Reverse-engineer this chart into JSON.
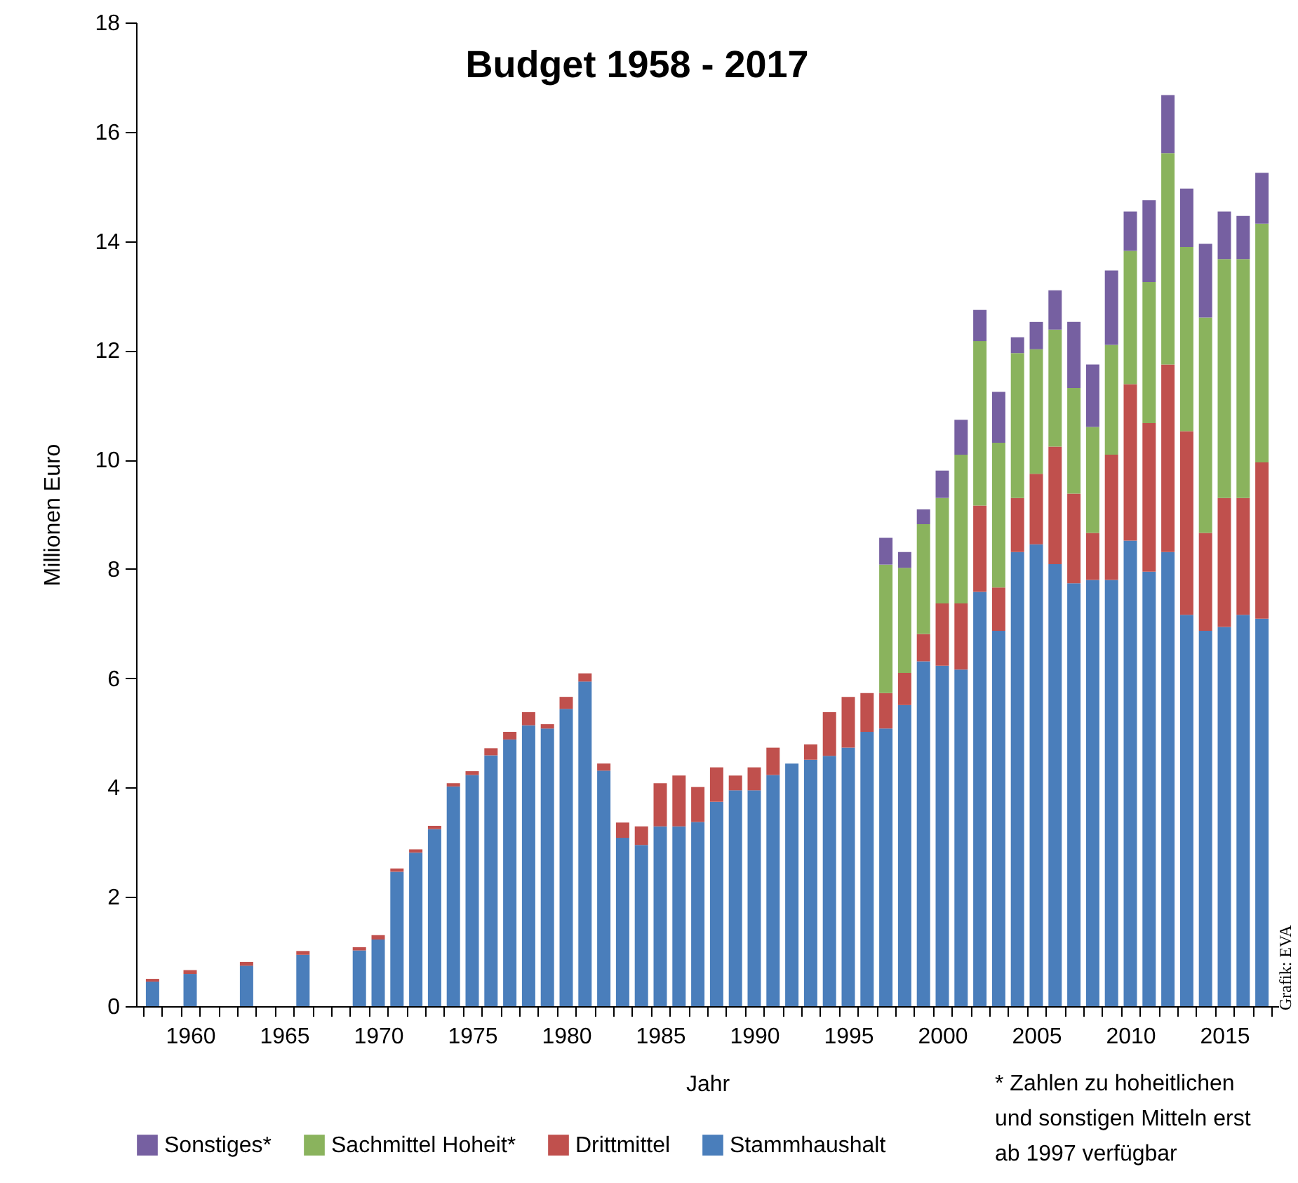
{
  "chart_data": {
    "type": "bar",
    "stacked": true,
    "title": "Budget 1958 - 2017",
    "xlabel": "Jahr",
    "ylabel": "Millionen Euro",
    "legend": "bottom",
    "x": [
      1958,
      1959,
      1960,
      1961,
      1962,
      1963,
      1964,
      1965,
      1966,
      1967,
      1968,
      1969,
      1970,
      1971,
      1972,
      1973,
      1974,
      1975,
      1976,
      1977,
      1978,
      1979,
      1980,
      1981,
      1982,
      1983,
      1984,
      1985,
      1986,
      1987,
      1988,
      1989,
      1990,
      1991,
      1992,
      1993,
      1994,
      1995,
      1996,
      1997,
      1998,
      1999,
      2000,
      2001,
      2002,
      2003,
      2004,
      2005,
      2006,
      2007,
      2008,
      2009,
      2010,
      2011,
      2012,
      2013,
      2014,
      2015,
      2016,
      2017
    ],
    "xlim": [
      1957.5,
      2017.5
    ],
    "xticks": [
      1960,
      1965,
      1970,
      1975,
      1980,
      1985,
      1990,
      1995,
      2000,
      2005,
      2010,
      2015,
      {
        "value": 1957.5,
        "label": null
      },
      {
        "value": 1958.5,
        "label": null
      },
      {
        "value": 1959.5,
        "label": null
      },
      {
        "value": 1960.5,
        "label": null
      },
      {
        "value": 1961.5,
        "label": null
      },
      {
        "value": 1962.5,
        "label": null
      },
      {
        "value": 1963.5,
        "label": null
      },
      {
        "value": 1964.5,
        "label": null
      },
      {
        "value": 1965.5,
        "label": null
      },
      {
        "value": 1966.5,
        "label": null
      },
      {
        "value": 1967.5,
        "label": null
      },
      {
        "value": 1968.5,
        "label": null
      },
      {
        "value": 1969.5,
        "label": null
      },
      {
        "value": 1970.5,
        "label": null
      },
      {
        "value": 1971.5,
        "label": null
      },
      {
        "value": 1972.5,
        "label": null
      },
      {
        "value": 1973.5,
        "label": null
      },
      {
        "value": 1974.5,
        "label": null
      },
      {
        "value": 1975.5,
        "label": null
      },
      {
        "value": 1976.5,
        "label": null
      },
      {
        "value": 1977.5,
        "label": null
      },
      {
        "value": 1978.5,
        "label": null
      },
      {
        "value": 1979.5,
        "label": null
      },
      {
        "value": 1980.5,
        "label": null
      },
      {
        "value": 1981.5,
        "label": null
      },
      {
        "value": 1982.5,
        "label": null
      },
      {
        "value": 1983.5,
        "label": null
      },
      {
        "value": 1984.5,
        "label": null
      },
      {
        "value": 1985.5,
        "label": null
      },
      {
        "value": 1986.5,
        "label": null
      },
      {
        "value": 1987.5,
        "label": null
      },
      {
        "value": 1988.5,
        "label": null
      },
      {
        "value": 1989.5,
        "label": null
      },
      {
        "value": 1990.5,
        "label": null
      },
      {
        "value": 1991.5,
        "label": null
      },
      {
        "value": 1992.5,
        "label": null
      },
      {
        "value": 1993.5,
        "label": null
      },
      {
        "value": 1994.5,
        "label": null
      },
      {
        "value": 1995.5,
        "label": null
      },
      {
        "value": 1996.5,
        "label": null
      },
      {
        "value": 1997.5,
        "label": null
      },
      {
        "value": 1998.5,
        "label": null
      },
      {
        "value": 1999.5,
        "label": null
      },
      {
        "value": 2000.5,
        "label": null
      },
      {
        "value": 2001.5,
        "label": null
      },
      {
        "value": 2002.5,
        "label": null
      },
      {
        "value": 2003.5,
        "label": null
      },
      {
        "value": 2004.5,
        "label": null
      },
      {
        "value": 2005.5,
        "label": null
      },
      {
        "value": 2006.5,
        "label": null
      },
      {
        "value": 2007.5,
        "label": null
      },
      {
        "value": 2008.5,
        "label": null
      },
      {
        "value": 2009.5,
        "label": null
      },
      {
        "value": 2010.5,
        "label": null
      },
      {
        "value": 2011.5,
        "label": null
      },
      {
        "value": 2012.5,
        "label": null
      },
      {
        "value": 2013.5,
        "label": null
      },
      {
        "value": 2014.5,
        "label": null
      },
      {
        "value": 2015.5,
        "label": null
      },
      {
        "value": 2016.5,
        "label": null
      },
      {
        "value": 2017.5,
        "label": null
      }
    ],
    "ylim": [
      0,
      18
    ],
    "yticks": [
      0,
      2,
      4,
      6,
      8,
      10,
      12,
      14,
      16,
      18
    ],
    "series": [
      {
        "name": "Stammhaushalt",
        "color": "#4a7ebb",
        "values": [
          0.45,
          null,
          0.59,
          null,
          null,
          0.74,
          null,
          null,
          0.94,
          null,
          null,
          1.02,
          1.22,
          2.46,
          2.81,
          3.24,
          4.02,
          4.23,
          4.59,
          4.88,
          5.14,
          5.08,
          5.44,
          5.94,
          4.31,
          3.08,
          2.95,
          3.29,
          3.29,
          3.37,
          3.74,
          3.95,
          3.95,
          4.23,
          4.44,
          4.51,
          4.58,
          4.73,
          5.02,
          5.08,
          5.51,
          6.31,
          6.23,
          6.16,
          7.58,
          6.87,
          8.31,
          8.45,
          8.09,
          7.74,
          7.8,
          7.8,
          8.52,
          7.95,
          8.31,
          7.16,
          6.87,
          6.94,
          7.16,
          7.09
        ]
      },
      {
        "name": "Drittmittel",
        "color": "#c0504d",
        "values": [
          0.05,
          null,
          0.07,
          null,
          null,
          0.07,
          null,
          null,
          0.07,
          null,
          null,
          0.06,
          0.08,
          0.06,
          0.06,
          0.06,
          0.06,
          0.07,
          0.13,
          0.14,
          0.24,
          0.08,
          0.22,
          0.15,
          0.13,
          0.28,
          0.34,
          0.79,
          0.93,
          0.64,
          0.63,
          0.27,
          0.42,
          0.5,
          0,
          0.28,
          0.8,
          0.93,
          0.71,
          0.65,
          0.59,
          0.5,
          1.14,
          1.21,
          1.58,
          0.79,
          0.99,
          1.29,
          2.15,
          1.64,
          0.86,
          2.29,
          2.86,
          2.72,
          3.43,
          3.36,
          1.79,
          2.36,
          2.14,
          2.86
        ]
      },
      {
        "name": "Sachmittel Hoheit*",
        "color": "#8ab35d",
        "values": [
          null,
          null,
          null,
          null,
          null,
          null,
          null,
          null,
          null,
          null,
          null,
          null,
          null,
          null,
          null,
          null,
          null,
          null,
          null,
          null,
          null,
          null,
          null,
          null,
          null,
          null,
          null,
          null,
          null,
          null,
          null,
          null,
          null,
          null,
          null,
          null,
          null,
          null,
          null,
          2.35,
          1.92,
          2.01,
          1.93,
          2.72,
          3.01,
          2.65,
          2.65,
          2.28,
          2.14,
          1.93,
          1.94,
          2.01,
          2.44,
          2.58,
          3.87,
          3.37,
          3.94,
          4.37,
          4.37,
          4.37
        ]
      },
      {
        "name": "Sonstiges*",
        "color": "#7660a1",
        "values": [
          null,
          null,
          null,
          null,
          null,
          null,
          null,
          null,
          null,
          null,
          null,
          null,
          null,
          null,
          null,
          null,
          null,
          null,
          null,
          null,
          null,
          null,
          null,
          null,
          null,
          null,
          null,
          null,
          null,
          null,
          null,
          null,
          null,
          null,
          null,
          null,
          null,
          null,
          null,
          0.49,
          0.29,
          0.27,
          0.5,
          0.64,
          0.57,
          0.93,
          0.29,
          0.5,
          0.72,
          1.21,
          1.14,
          1.36,
          0.72,
          1.5,
          1.06,
          1.07,
          1.35,
          0.87,
          0.79,
          0.93
        ]
      }
    ],
    "annotations": [
      "* Zahlen zu hoheitlichen\nund sonstigen Mitteln erst\nab 1997 verfügbar",
      "Grafik: EVA"
    ]
  }
}
